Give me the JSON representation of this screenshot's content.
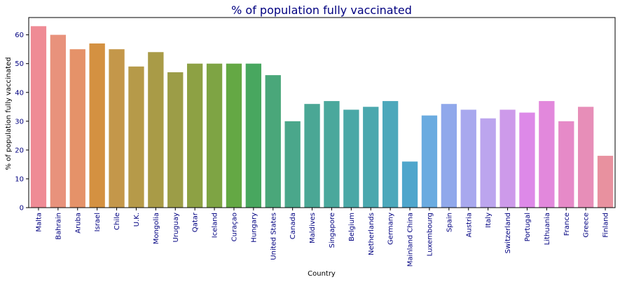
{
  "chart_data": {
    "type": "bar",
    "title": "% of population fully vaccinated",
    "xlabel": "Country",
    "ylabel": "% of population fully vaccinated",
    "ylim": [
      0,
      66
    ],
    "yticks": [
      0,
      10,
      20,
      30,
      40,
      50,
      60
    ],
    "grid": false,
    "legend": "none",
    "categories": [
      "Malta",
      "Bahrain",
      "Aruba",
      "Israel",
      "Chile",
      "U.K.",
      "Mongolia",
      "Uruguay",
      "Qatar",
      "Iceland",
      "Curaçao",
      "Hungary",
      "United States",
      "Canada",
      "Maldives",
      "Singapore",
      "Belgium",
      "Netherlands",
      "Germany",
      "Mainland China",
      "Luxembourg",
      "Spain",
      "Austria",
      "Italy",
      "Switzerland",
      "Portugal",
      "Lithuania",
      "France",
      "Greece",
      "Finland"
    ],
    "values": [
      63,
      60,
      55,
      57,
      55,
      49,
      54,
      47,
      50,
      50,
      50,
      50,
      46,
      30,
      36,
      37,
      34,
      35,
      37,
      16,
      32,
      36,
      34,
      31,
      34,
      33,
      37,
      30,
      35,
      18
    ],
    "colors": [
      "#ef8b95",
      "#e8927c",
      "#e59269",
      "#d49141",
      "#c4974a",
      "#b69a49",
      "#a99b47",
      "#9c9d47",
      "#8da144",
      "#7ea444",
      "#64a844",
      "#48a75f",
      "#4aa77a",
      "#4aa78b",
      "#4aa795",
      "#4aa89c",
      "#4aa8a6",
      "#4ba8ae",
      "#4ca8bb",
      "#4fa6cc",
      "#6aabe0",
      "#90a8eb",
      "#a8a8ee",
      "#bca5ee",
      "#cd9aea",
      "#dd89e8",
      "#e288dc",
      "#e68ac8",
      "#e78eb8",
      "#e8919f"
    ]
  }
}
